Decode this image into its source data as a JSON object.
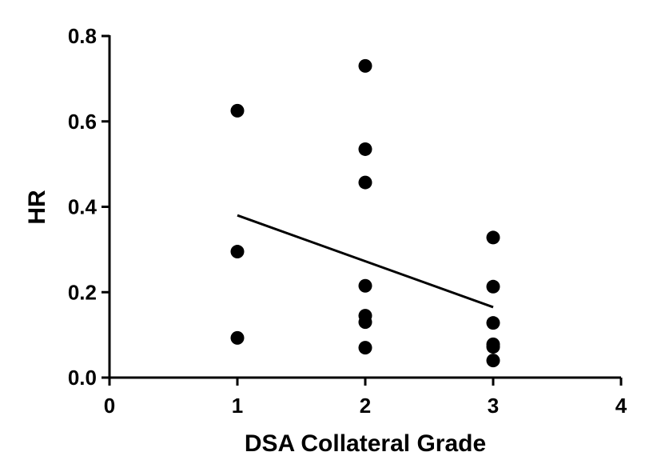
{
  "chart_data": {
    "type": "scatter",
    "title": "",
    "xlabel": "DSA Collateral Grade",
    "ylabel": "HR",
    "xlim": [
      0,
      4
    ],
    "ylim": [
      0,
      0.8
    ],
    "xticks": [
      0,
      1,
      2,
      3,
      4
    ],
    "xtick_labels": [
      "0",
      "1",
      "2",
      "3",
      "4"
    ],
    "yticks": [
      0,
      0.2,
      0.4,
      0.6,
      0.8
    ],
    "ytick_labels": [
      "0.0",
      "0.2",
      "0.4",
      "0.6",
      "0.8"
    ],
    "grid": false,
    "legend": "none",
    "colors": {
      "points": "#000000",
      "line": "#000000",
      "axes": "#000000"
    },
    "series": [
      {
        "points": [
          {
            "x": 1,
            "y": 0.625
          },
          {
            "x": 1,
            "y": 0.295
          },
          {
            "x": 1,
            "y": 0.093
          },
          {
            "x": 2,
            "y": 0.73
          },
          {
            "x": 2,
            "y": 0.535
          },
          {
            "x": 2,
            "y": 0.457
          },
          {
            "x": 2,
            "y": 0.215
          },
          {
            "x": 2,
            "y": 0.145
          },
          {
            "x": 2,
            "y": 0.13
          },
          {
            "x": 2,
            "y": 0.07
          },
          {
            "x": 3,
            "y": 0.328
          },
          {
            "x": 3,
            "y": 0.213
          },
          {
            "x": 3,
            "y": 0.128
          },
          {
            "x": 3,
            "y": 0.078
          },
          {
            "x": 3,
            "y": 0.072
          },
          {
            "x": 3,
            "y": 0.04
          }
        ]
      }
    ],
    "trend_line": {
      "x": [
        1,
        3
      ],
      "y": [
        0.38,
        0.165
      ]
    }
  }
}
